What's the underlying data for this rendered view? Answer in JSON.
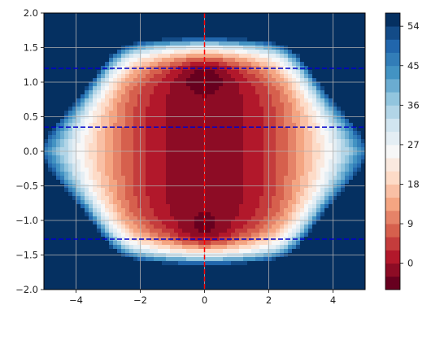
{
  "chart_data": {
    "type": "contour",
    "title": "",
    "xlabel": "",
    "ylabel": "",
    "xlim": [
      -5,
      5
    ],
    "ylim": [
      -2,
      2
    ],
    "grid": true,
    "x_ticks": [
      -4,
      -2,
      0,
      2,
      4
    ],
    "x_tick_labels": [
      "−4",
      "−2",
      "0",
      "2",
      "4"
    ],
    "y_ticks": [
      2.0,
      1.5,
      1.0,
      0.5,
      0.0,
      -0.5,
      -1.0,
      -1.5,
      -2.0
    ],
    "y_tick_labels": [
      "2.0",
      "1.5",
      "1.0",
      "0.5",
      "0.0",
      "−0.5",
      "−1.0",
      "−1.5",
      "−2.0"
    ],
    "colormap": "RdBu",
    "contour_levels": [
      -6,
      -3,
      0,
      3,
      6,
      9,
      12,
      15,
      18,
      21,
      24,
      27,
      30,
      33,
      36,
      39,
      42,
      45,
      48,
      51,
      54,
      57
    ],
    "minima": [
      {
        "x": 0,
        "y": 1.2
      },
      {
        "x": 0,
        "y": -1.25
      }
    ],
    "colorbar": {
      "ticks": [
        0,
        9,
        18,
        27,
        36,
        45,
        54
      ],
      "tick_labels": [
        "0",
        "9",
        "18",
        "27",
        "36",
        "45",
        "54"
      ],
      "range": [
        -6,
        57
      ]
    },
    "lines": [
      {
        "orientation": "vertical",
        "x": 0,
        "color": "#ff0000",
        "style": "dashed"
      },
      {
        "orientation": "horizontal",
        "y": 1.2,
        "color": "#0000cc",
        "style": "dashed"
      },
      {
        "orientation": "horizontal",
        "y": 0.35,
        "color": "#0000cc",
        "style": "dashed"
      },
      {
        "orientation": "horizontal",
        "y": -1.27,
        "color": "#0000cc",
        "style": "dashed"
      }
    ]
  }
}
